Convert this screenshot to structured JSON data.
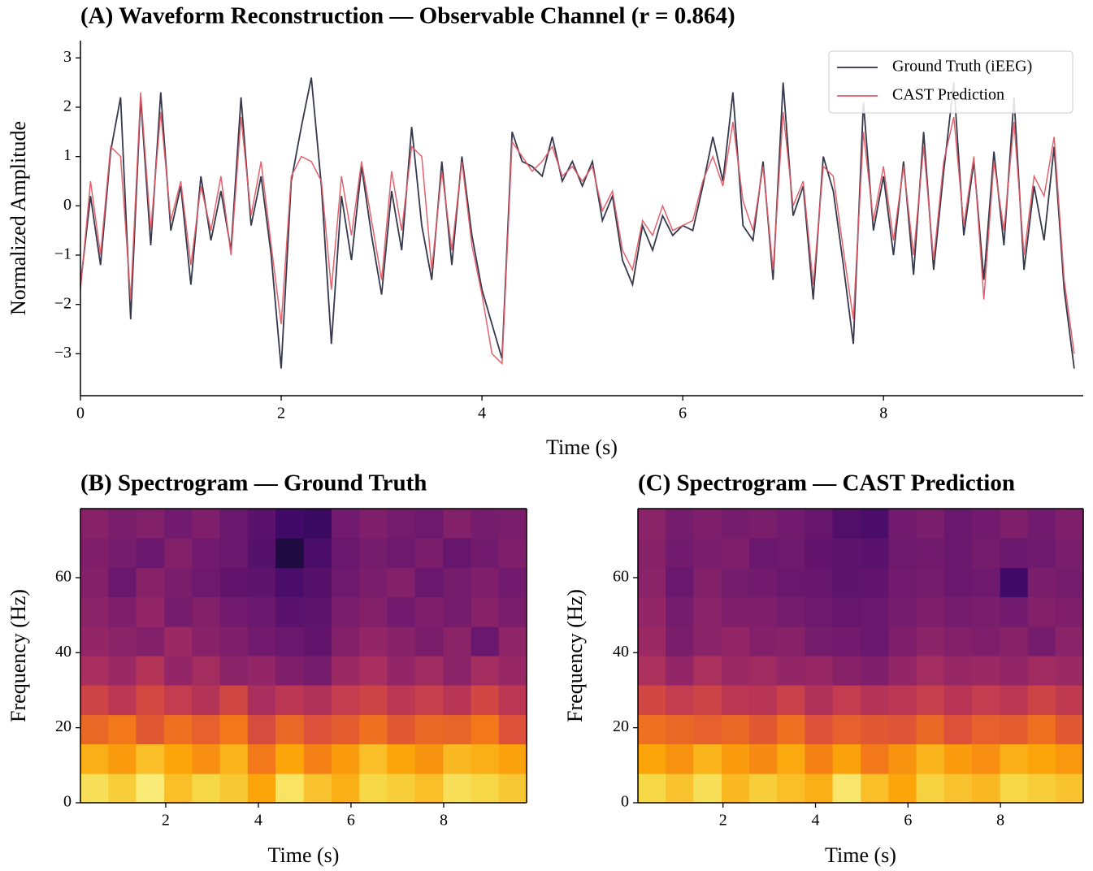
{
  "chart_data": [
    {
      "type": "line",
      "title": "(A) Waveform Reconstruction — Observable Channel (r = 0.864)",
      "xlabel": "Time (s)",
      "ylabel": "Normalized Amplitude",
      "xlim": [
        0,
        9.99
      ],
      "ylim": [
        -3.85,
        3.35
      ],
      "xticks": [
        0,
        2,
        4,
        6,
        8
      ],
      "yticks": [
        {
          "value": -3,
          "label": "−3"
        },
        {
          "value": -2,
          "label": "−2"
        },
        {
          "value": -1,
          "label": "−1"
        },
        0,
        1,
        2,
        3
      ],
      "legend": "upper right",
      "x": [
        0,
        0.1,
        0.2,
        0.3,
        0.4,
        0.5,
        0.6,
        0.7,
        0.8,
        0.9,
        1,
        1.1,
        1.2,
        1.3,
        1.4,
        1.5,
        1.6,
        1.7,
        1.8,
        1.9,
        2,
        2.1,
        2.2,
        2.3,
        2.4,
        2.5,
        2.6,
        2.7,
        2.8,
        2.9,
        3,
        3.1,
        3.2,
        3.3,
        3.4,
        3.5,
        3.6,
        3.7,
        3.8,
        3.9,
        4,
        4.1,
        4.2,
        4.3,
        4.4,
        4.5,
        4.6,
        4.7,
        4.8,
        4.9,
        5,
        5.1,
        5.2,
        5.3,
        5.4,
        5.5,
        5.6,
        5.7,
        5.8,
        5.9,
        6,
        6.1,
        6.2,
        6.3,
        6.4,
        6.5,
        6.6,
        6.7,
        6.8,
        6.9,
        7,
        7.1,
        7.2,
        7.3,
        7.4,
        7.5,
        7.6,
        7.7,
        7.8,
        7.9,
        8,
        8.1,
        8.2,
        8.3,
        8.4,
        8.5,
        8.6,
        8.7,
        8.8,
        8.9,
        9,
        9.1,
        9.2,
        9.3,
        9.4,
        9.5,
        9.6,
        9.7,
        9.8,
        9.9
      ],
      "series": [
        {
          "name": "Ground Truth (iEEG)",
          "color": "#2b2d42",
          "values": [
            -1.6,
            0.2,
            -1.2,
            1.1,
            2.2,
            -2.3,
            2.2,
            -0.8,
            2.3,
            -0.5,
            0.4,
            -1.6,
            0.6,
            -0.7,
            0.3,
            -0.9,
            2.2,
            -0.4,
            0.6,
            -1.0,
            -3.3,
            0.5,
            1.6,
            2.6,
            0.4,
            -2.8,
            0.2,
            -1.1,
            0.8,
            -0.6,
            -1.8,
            0.3,
            -0.9,
            1.6,
            -0.4,
            -1.5,
            0.9,
            -1.2,
            1.0,
            -0.6,
            -1.7,
            -2.4,
            -3.1,
            1.5,
            0.9,
            0.8,
            0.6,
            1.4,
            0.5,
            0.9,
            0.4,
            0.9,
            -0.3,
            0.2,
            -1.1,
            -1.6,
            -0.4,
            -0.9,
            -0.2,
            -0.6,
            -0.4,
            -0.5,
            0.4,
            1.4,
            0.5,
            2.3,
            -0.4,
            -0.7,
            0.9,
            -1.5,
            2.5,
            -0.2,
            0.4,
            -1.9,
            1.0,
            0.3,
            -1.2,
            -2.8,
            2.1,
            -0.5,
            0.6,
            -1.0,
            0.9,
            -1.4,
            1.5,
            -1.3,
            0.7,
            2.5,
            -0.6,
            0.9,
            -1.5,
            1.1,
            -0.8,
            2.2,
            -1.3,
            0.4,
            -0.7,
            1.2,
            -1.7,
            -3.3
          ]
        },
        {
          "name": "CAST Prediction",
          "color": "#e05a66",
          "values": [
            -1.7,
            0.5,
            -1.0,
            1.2,
            1.0,
            -1.9,
            2.3,
            -0.5,
            1.9,
            -0.3,
            0.5,
            -1.2,
            0.4,
            -0.5,
            0.6,
            -1.0,
            1.8,
            -0.2,
            0.9,
            -0.8,
            -2.4,
            0.6,
            1.0,
            0.9,
            0.5,
            -1.7,
            0.6,
            -0.6,
            0.9,
            -0.3,
            -1.5,
            0.7,
            -0.5,
            1.2,
            1.0,
            -1.3,
            0.7,
            -0.9,
            0.9,
            -0.8,
            -1.8,
            -3.0,
            -3.2,
            1.3,
            1.0,
            0.7,
            0.9,
            1.2,
            0.6,
            0.8,
            0.5,
            0.8,
            -0.1,
            0.3,
            -0.9,
            -1.3,
            -0.3,
            -0.6,
            0.0,
            -0.5,
            -0.4,
            -0.3,
            0.5,
            1.0,
            0.4,
            1.7,
            0.1,
            -0.5,
            0.8,
            -1.3,
            1.9,
            0.0,
            0.5,
            -1.6,
            0.8,
            0.6,
            -0.9,
            -2.3,
            1.5,
            -0.3,
            0.8,
            -0.7,
            0.8,
            -1.0,
            1.2,
            -1.1,
            0.9,
            1.8,
            -0.4,
            1.0,
            -1.9,
            0.9,
            -0.5,
            1.7,
            -1.0,
            0.6,
            0.2,
            1.4,
            -1.5,
            -3.0
          ]
        }
      ]
    },
    {
      "type": "heatmap",
      "title": "(B) Spectrogram — Ground Truth",
      "xlabel": "Time (s)",
      "ylabel": "Frequency (Hz)",
      "colormap": "inferno",
      "xlim": [
        0.16,
        9.79
      ],
      "ylim": [
        0,
        78.4
      ],
      "xticks": [
        2,
        4,
        6,
        8
      ],
      "yticks": [
        0,
        20,
        40,
        60
      ],
      "xbins": [
        0.16,
        0.76,
        1.36,
        1.97,
        2.57,
        3.17,
        3.77,
        4.37,
        4.98,
        5.58,
        6.18,
        6.78,
        7.38,
        7.99,
        8.59,
        9.19,
        9.79
      ],
      "ybins": [
        0,
        7.8,
        15.7,
        23.5,
        31.4,
        39.2,
        47.0,
        54.9,
        62.7,
        70.6,
        78.4
      ],
      "z": [
        [
          0.92,
          0.88,
          0.95,
          0.85,
          0.9,
          0.87,
          0.8,
          0.93,
          0.86,
          0.82,
          0.9,
          0.88,
          0.85,
          0.92,
          0.9,
          0.87
        ],
        [
          0.82,
          0.78,
          0.85,
          0.8,
          0.75,
          0.83,
          0.7,
          0.8,
          0.72,
          0.78,
          0.85,
          0.8,
          0.76,
          0.84,
          0.82,
          0.79
        ],
        [
          0.66,
          0.7,
          0.62,
          0.68,
          0.64,
          0.7,
          0.58,
          0.66,
          0.6,
          0.63,
          0.68,
          0.62,
          0.66,
          0.65,
          0.7,
          0.6
        ],
        [
          0.55,
          0.5,
          0.57,
          0.52,
          0.48,
          0.56,
          0.45,
          0.5,
          0.47,
          0.52,
          0.55,
          0.5,
          0.53,
          0.49,
          0.56,
          0.5
        ],
        [
          0.45,
          0.42,
          0.48,
          0.4,
          0.44,
          0.38,
          0.4,
          0.35,
          0.33,
          0.42,
          0.45,
          0.4,
          0.43,
          0.38,
          0.44,
          0.41
        ],
        [
          0.4,
          0.38,
          0.36,
          0.42,
          0.37,
          0.35,
          0.32,
          0.3,
          0.28,
          0.36,
          0.4,
          0.37,
          0.34,
          0.38,
          0.3,
          0.39
        ],
        [
          0.38,
          0.35,
          0.4,
          0.33,
          0.36,
          0.32,
          0.3,
          0.26,
          0.27,
          0.34,
          0.36,
          0.32,
          0.35,
          0.33,
          0.37,
          0.34
        ],
        [
          0.36,
          0.3,
          0.37,
          0.34,
          0.31,
          0.28,
          0.27,
          0.22,
          0.25,
          0.31,
          0.34,
          0.36,
          0.3,
          0.33,
          0.35,
          0.32
        ],
        [
          0.35,
          0.33,
          0.3,
          0.36,
          0.32,
          0.3,
          0.25,
          0.12,
          0.22,
          0.3,
          0.33,
          0.31,
          0.34,
          0.29,
          0.32,
          0.35
        ],
        [
          0.37,
          0.34,
          0.36,
          0.32,
          0.35,
          0.3,
          0.26,
          0.2,
          0.18,
          0.32,
          0.35,
          0.33,
          0.31,
          0.36,
          0.33,
          0.34
        ]
      ]
    },
    {
      "type": "heatmap",
      "title": "(C) Spectrogram — CAST Prediction",
      "xlabel": "Time (s)",
      "ylabel": "Frequency (Hz)",
      "colormap": "inferno",
      "xlim": [
        0.16,
        9.79
      ],
      "ylim": [
        0,
        78.4
      ],
      "xticks": [
        2,
        4,
        6,
        8
      ],
      "yticks": [
        0,
        20,
        40,
        60
      ],
      "xbins": [
        0.16,
        0.76,
        1.36,
        1.97,
        2.57,
        3.17,
        3.77,
        4.37,
        4.98,
        5.58,
        6.18,
        6.78,
        7.38,
        7.99,
        8.59,
        9.19,
        9.79
      ],
      "ybins": [
        0,
        7.8,
        15.7,
        23.5,
        31.4,
        39.2,
        47.0,
        54.9,
        62.7,
        70.6,
        78.4
      ],
      "z": [
        [
          0.9,
          0.86,
          0.92,
          0.84,
          0.88,
          0.85,
          0.82,
          0.94,
          0.85,
          0.8,
          0.89,
          0.86,
          0.84,
          0.9,
          0.88,
          0.86
        ],
        [
          0.8,
          0.76,
          0.83,
          0.78,
          0.74,
          0.81,
          0.72,
          0.79,
          0.7,
          0.76,
          0.83,
          0.78,
          0.75,
          0.82,
          0.8,
          0.77
        ],
        [
          0.68,
          0.66,
          0.64,
          0.66,
          0.62,
          0.68,
          0.6,
          0.64,
          0.62,
          0.61,
          0.66,
          0.6,
          0.64,
          0.63,
          0.68,
          0.62
        ],
        [
          0.56,
          0.52,
          0.55,
          0.5,
          0.49,
          0.54,
          0.47,
          0.52,
          0.48,
          0.5,
          0.53,
          0.49,
          0.52,
          0.5,
          0.55,
          0.51
        ],
        [
          0.46,
          0.4,
          0.46,
          0.42,
          0.43,
          0.4,
          0.41,
          0.37,
          0.35,
          0.4,
          0.44,
          0.41,
          0.42,
          0.4,
          0.43,
          0.42
        ],
        [
          0.42,
          0.34,
          0.38,
          0.4,
          0.36,
          0.37,
          0.33,
          0.32,
          0.3,
          0.35,
          0.38,
          0.36,
          0.35,
          0.37,
          0.33,
          0.38
        ],
        [
          0.4,
          0.33,
          0.38,
          0.35,
          0.35,
          0.33,
          0.31,
          0.29,
          0.3,
          0.33,
          0.35,
          0.33,
          0.34,
          0.32,
          0.36,
          0.35
        ],
        [
          0.38,
          0.3,
          0.36,
          0.33,
          0.32,
          0.3,
          0.29,
          0.27,
          0.28,
          0.32,
          0.33,
          0.3,
          0.31,
          0.2,
          0.34,
          0.33
        ],
        [
          0.37,
          0.32,
          0.34,
          0.35,
          0.3,
          0.31,
          0.28,
          0.27,
          0.26,
          0.31,
          0.32,
          0.3,
          0.33,
          0.3,
          0.31,
          0.34
        ],
        [
          0.38,
          0.33,
          0.35,
          0.33,
          0.34,
          0.32,
          0.29,
          0.24,
          0.22,
          0.32,
          0.34,
          0.3,
          0.32,
          0.35,
          0.32,
          0.35
        ]
      ]
    }
  ]
}
